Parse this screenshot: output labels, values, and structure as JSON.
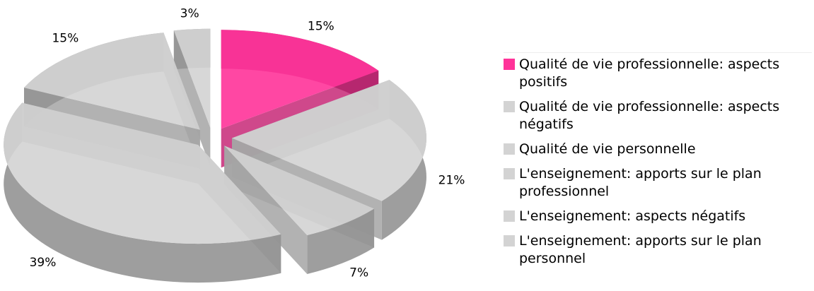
{
  "chart_data": {
    "type": "pie3d",
    "categories": [
      "Qualité de vie professionnelle: aspects positifs",
      "Qualité de vie professionnelle: aspects négatifs",
      "Qualité de vie personnelle",
      "L'enseignement: apports sur le plan professionnel",
      "L'enseignement: aspects négatifs",
      "L'enseignement: apports sur le plan personnel"
    ],
    "values": [
      15,
      21,
      7,
      39,
      15,
      3
    ],
    "value_labels": [
      "15%",
      "21%",
      "7%",
      "39%",
      "15%",
      "3%"
    ],
    "colors": [
      "#ff3399",
      "#d3d3d3",
      "#d3d3d3",
      "#d3d3d3",
      "#d3d3d3",
      "#d3d3d3"
    ],
    "legend": "right"
  }
}
